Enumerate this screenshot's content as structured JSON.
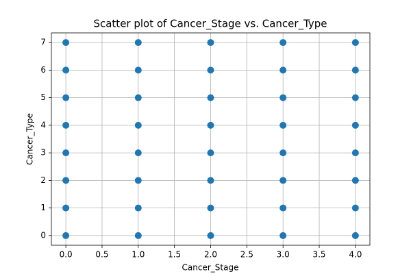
{
  "chart_data": {
    "type": "scatter",
    "title": "Scatter plot of Cancer_Stage vs. Cancer_Type",
    "x_label": "Cancer_Stage",
    "y_label": "Cancer_Type",
    "x": [
      0,
      0,
      0,
      0,
      0,
      0,
      0,
      0,
      1,
      1,
      1,
      1,
      1,
      1,
      1,
      1,
      2,
      2,
      2,
      2,
      2,
      2,
      2,
      2,
      3,
      3,
      3,
      3,
      3,
      3,
      3,
      3,
      4,
      4,
      4,
      4,
      4,
      4,
      4,
      4
    ],
    "y": [
      0,
      1,
      2,
      3,
      4,
      5,
      6,
      7,
      0,
      1,
      2,
      3,
      4,
      5,
      6,
      7,
      0,
      1,
      2,
      3,
      4,
      5,
      6,
      7,
      0,
      1,
      2,
      3,
      4,
      5,
      6,
      7,
      0,
      1,
      2,
      3,
      4,
      5,
      6,
      7
    ],
    "color": "#1f77b4",
    "xlim": [
      -0.2,
      4.2
    ],
    "xticks": [
      {
        "value": 0,
        "label": "0.0"
      },
      {
        "value": 0.5,
        "label": "0.5"
      },
      {
        "value": 1,
        "label": "1.0"
      },
      {
        "value": 1.5,
        "label": "1.5"
      },
      {
        "value": 2,
        "label": "2.0"
      },
      {
        "value": 2.5,
        "label": "2.5"
      },
      {
        "value": 3,
        "label": "3.0"
      },
      {
        "value": 3.5,
        "label": "3.5"
      },
      {
        "value": 4,
        "label": "4.0"
      }
    ],
    "ylim": [
      -0.35,
      7.35
    ],
    "yticks": [
      0,
      1,
      2,
      3,
      4,
      5,
      6,
      7
    ],
    "grid": true
  }
}
